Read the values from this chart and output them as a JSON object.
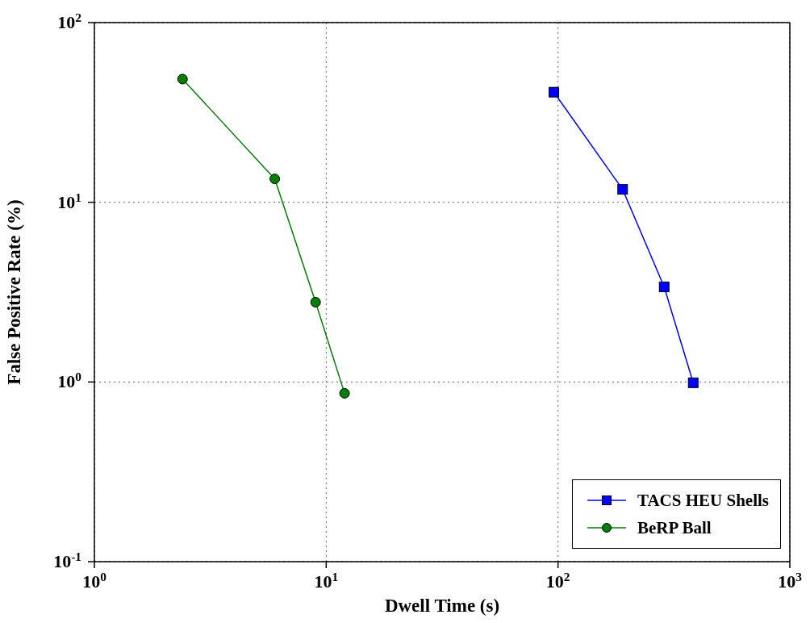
{
  "chart_data": {
    "type": "line",
    "xlabel": "Dwell Time (s)",
    "ylabel": "False Positive Rate (%)",
    "log": "xy",
    "grid": true,
    "legend": "bottom right",
    "line_style": "solid",
    "xlim": [
      1,
      1000
    ],
    "xticks": [
      {
        "value": 1,
        "label": "10$^{0}$"
      },
      {
        "value": 10,
        "label": "10$^{1}$"
      },
      {
        "value": 100,
        "label": "10$^{2}$"
      },
      {
        "value": 1000,
        "label": "10$^{3}$"
      }
    ],
    "ylim": [
      0.1,
      100
    ],
    "yticks": [
      {
        "value": 0.1,
        "label": "10$^{-1}$"
      },
      {
        "value": 1,
        "label": "10$^{0}$"
      },
      {
        "value": 10,
        "label": "10$^{1}$"
      },
      {
        "value": 100,
        "label": "10$^{2}$"
      }
    ],
    "series": [
      {
        "name": "TACS HEU Shells",
        "color": "#0000ff",
        "marker": "square",
        "x": [
          96,
          190,
          287,
          383
        ],
        "values": [
          41,
          11.8,
          3.38,
          0.99
        ]
      },
      {
        "name": "BeRP Ball",
        "color": "#007f00",
        "marker": "circle",
        "x": [
          2.4,
          6,
          9,
          12
        ],
        "values": [
          48.5,
          13.5,
          2.78,
          0.865
        ]
      }
    ]
  }
}
